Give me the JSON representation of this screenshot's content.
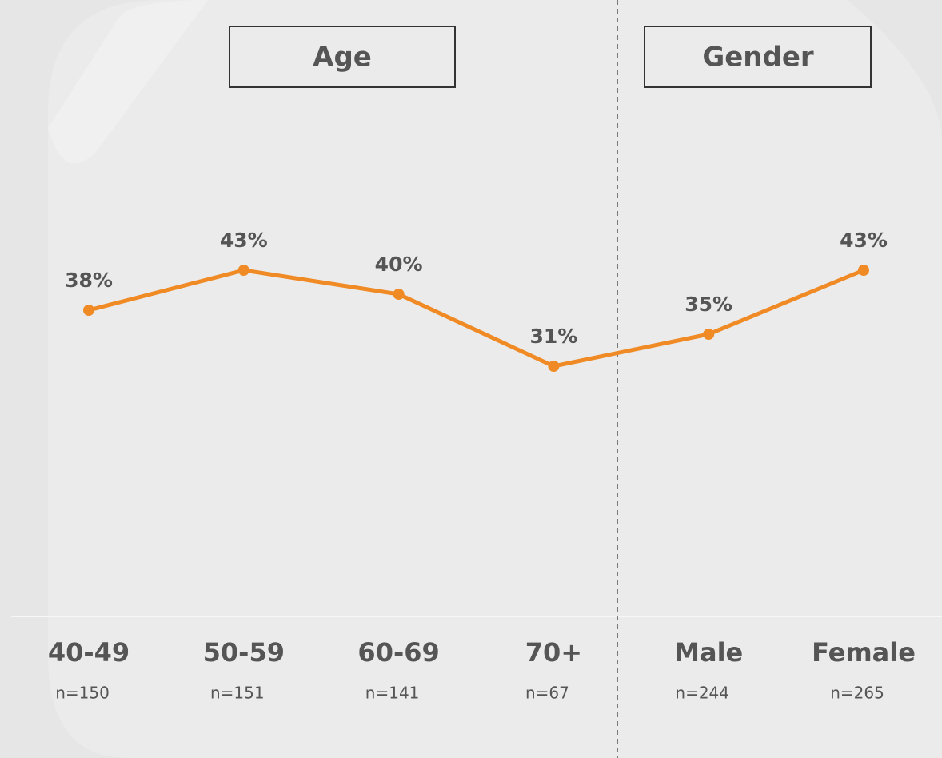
{
  "chart_data": {
    "type": "line",
    "groups": [
      "Age",
      "Gender"
    ],
    "categories": [
      "40-49",
      "50-59",
      "60-69",
      "70+",
      "Male",
      "Female"
    ],
    "sample_sizes": [
      "n=150",
      "n=151",
      "n=141",
      "n=67",
      "n=244",
      "n=265"
    ],
    "values": [
      38,
      43,
      40,
      31,
      35,
      43
    ],
    "value_labels": [
      "38%",
      "43%",
      "40%",
      "31%",
      "35%",
      "43%"
    ],
    "color": "#f08a24"
  }
}
